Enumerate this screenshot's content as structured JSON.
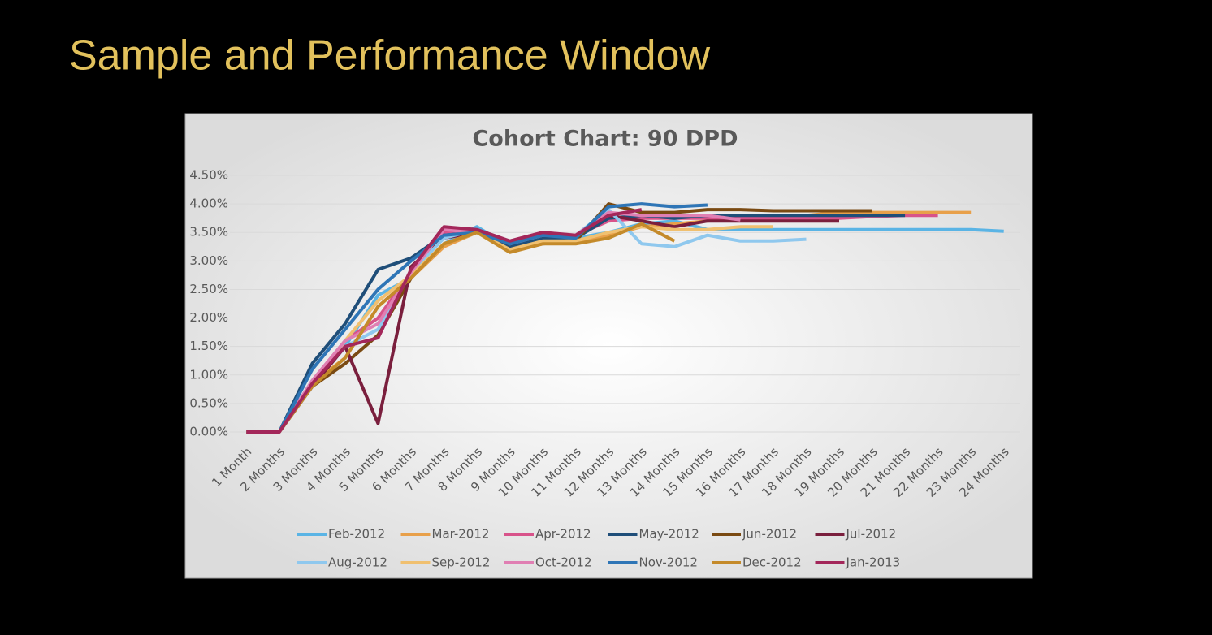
{
  "title": "Sample and Performance Window",
  "chart_data": {
    "type": "line",
    "title": "Cohort Chart: 90 DPD",
    "categories": [
      "1 Month",
      "2 Months",
      "3 Months",
      "4 Months",
      "5 Months",
      "6 Months",
      "7 Months",
      "8 Months",
      "9 Months",
      "10 Months",
      "11 Months",
      "12 Months",
      "13 Months",
      "14 Months",
      "15 Months",
      "16 Months",
      "17 Months",
      "18 Months",
      "19 Months",
      "20 Months",
      "21 Months",
      "22 Months",
      "23 Months",
      "24 Months"
    ],
    "ylim": [
      0,
      4.5
    ],
    "yticks": [
      {
        "value": 0,
        "label": "0.00%"
      },
      {
        "value": 0.5,
        "label": "0.50%"
      },
      {
        "value": 1,
        "label": "1.00%"
      },
      {
        "value": 1.5,
        "label": "1.50%"
      },
      {
        "value": 2,
        "label": "2.00%"
      },
      {
        "value": 2.5,
        "label": "2.50%"
      },
      {
        "value": 3,
        "label": "3.00%"
      },
      {
        "value": 3.5,
        "label": "3.50%"
      },
      {
        "value": 4,
        "label": "4.00%"
      },
      {
        "value": 4.5,
        "label": "4.50%"
      }
    ],
    "grid": true,
    "legend": "bottom",
    "series": [
      {
        "name": "Feb-2012",
        "color": "#5ab4e5",
        "values": [
          0,
          0,
          0.8,
          1.5,
          2.4,
          2.7,
          3.3,
          3.6,
          3.25,
          3.4,
          3.4,
          3.5,
          3.65,
          3.7,
          3.55,
          3.55,
          3.55,
          3.55,
          3.55,
          3.55,
          3.55,
          3.55,
          3.55,
          3.52
        ]
      },
      {
        "name": "Mar-2012",
        "color": "#e8a04a",
        "values": [
          0,
          0,
          0.85,
          1.3,
          2.2,
          2.7,
          3.25,
          3.5,
          3.2,
          3.35,
          3.35,
          3.45,
          3.6,
          3.65,
          3.7,
          3.75,
          3.8,
          3.8,
          3.85,
          3.85,
          3.85,
          3.85,
          3.85,
          null
        ]
      },
      {
        "name": "Apr-2012",
        "color": "#d8538a",
        "values": [
          0,
          0,
          0.9,
          1.6,
          2.0,
          2.8,
          3.5,
          3.5,
          3.3,
          3.45,
          3.45,
          3.7,
          3.75,
          3.75,
          3.75,
          3.75,
          3.75,
          3.75,
          3.75,
          3.78,
          3.8,
          3.8,
          null,
          null
        ]
      },
      {
        "name": "May-2012",
        "color": "#1f4e79",
        "values": [
          0,
          0,
          1.2,
          1.9,
          2.85,
          3.05,
          3.45,
          3.5,
          3.25,
          3.4,
          3.4,
          3.75,
          3.8,
          3.75,
          3.8,
          3.8,
          3.8,
          3.8,
          3.8,
          3.8,
          3.8,
          null,
          null,
          null
        ]
      },
      {
        "name": "Jun-2012",
        "color": "#7a4a12",
        "values": [
          0,
          0,
          0.8,
          1.2,
          1.7,
          2.7,
          3.3,
          3.5,
          3.2,
          3.3,
          3.35,
          4.0,
          3.85,
          3.85,
          3.9,
          3.9,
          3.88,
          3.88,
          3.88,
          3.88,
          null,
          null,
          null,
          null
        ]
      },
      {
        "name": "Jul-2012",
        "color": "#7a1f3d",
        "values": [
          0,
          0,
          0.8,
          1.5,
          0.15,
          2.9,
          3.4,
          3.5,
          3.3,
          3.45,
          3.45,
          3.8,
          3.7,
          3.6,
          3.7,
          3.7,
          3.7,
          3.7,
          3.7,
          null,
          null,
          null,
          null,
          null
        ]
      },
      {
        "name": "Aug-2012",
        "color": "#8fc8ee",
        "values": [
          0,
          0,
          0.9,
          1.5,
          1.8,
          2.8,
          3.4,
          3.55,
          3.3,
          3.45,
          3.45,
          3.9,
          3.3,
          3.25,
          3.45,
          3.35,
          3.35,
          3.38,
          null,
          null,
          null,
          null,
          null,
          null
        ]
      },
      {
        "name": "Sep-2012",
        "color": "#f0c070",
        "values": [
          0,
          0,
          0.85,
          1.6,
          2.3,
          2.75,
          3.3,
          3.5,
          3.2,
          3.35,
          3.35,
          3.5,
          3.6,
          3.55,
          3.55,
          3.6,
          3.6,
          null,
          null,
          null,
          null,
          null,
          null,
          null
        ]
      },
      {
        "name": "Oct-2012",
        "color": "#e07fb3",
        "values": [
          0,
          0,
          0.9,
          1.6,
          1.9,
          2.8,
          3.55,
          3.5,
          3.35,
          3.5,
          3.45,
          3.85,
          3.8,
          3.8,
          3.8,
          3.72,
          null,
          null,
          null,
          null,
          null,
          null,
          null,
          null
        ]
      },
      {
        "name": "Nov-2012",
        "color": "#2e75b6",
        "values": [
          0,
          0,
          1.1,
          1.8,
          2.5,
          3.0,
          3.45,
          3.5,
          3.3,
          3.45,
          3.4,
          3.95,
          4.0,
          3.95,
          3.98,
          null,
          null,
          null,
          null,
          null,
          null,
          null,
          null,
          null
        ]
      },
      {
        "name": "Dec-2012",
        "color": "#c48a2a",
        "values": [
          0,
          0,
          0.8,
          1.3,
          2.2,
          2.7,
          3.3,
          3.5,
          3.15,
          3.3,
          3.3,
          3.4,
          3.65,
          3.35,
          null,
          null,
          null,
          null,
          null,
          null,
          null,
          null,
          null,
          null
        ]
      },
      {
        "name": "Jan-2013",
        "color": "#a3275a",
        "values": [
          0,
          0,
          0.85,
          1.5,
          1.65,
          2.85,
          3.6,
          3.55,
          3.35,
          3.5,
          3.45,
          3.8,
          3.9,
          null,
          null,
          null,
          null,
          null,
          null,
          null,
          null,
          null,
          null,
          null
        ]
      }
    ]
  }
}
